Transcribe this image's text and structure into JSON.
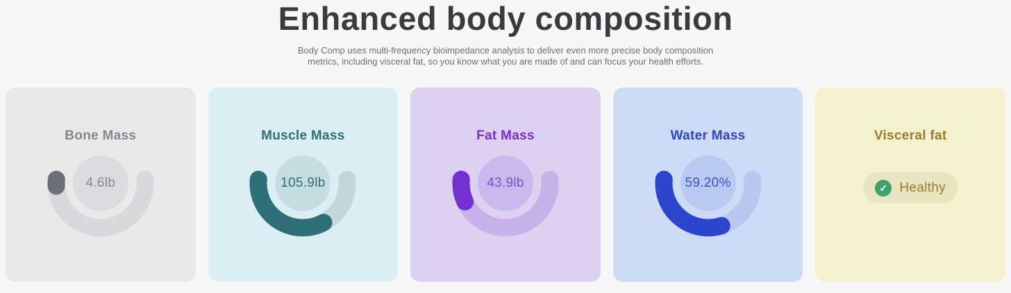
{
  "page": {
    "background": "#f7f7f8",
    "heading_color": "#3b3b3d",
    "subtitle_color": "#6c6e71"
  },
  "header": {
    "title": "Enhanced body composition",
    "subtitle": "Body Comp uses multi-frequency bioimpedance analysis to deliver even more precise body composition metrics, including visceral fat, so you know what you are made of and can focus your health efforts."
  },
  "cards": [
    {
      "id": "bone-mass",
      "title": "Bone Mass",
      "type": "gauge",
      "value": "4.6lb",
      "fraction": 0.045,
      "colors": {
        "bg": "#e9e9ea",
        "title": "#85888f",
        "track": "#d9d9db",
        "fill": "#6d7079",
        "circle": "#dcdcde",
        "value": "#85888f"
      }
    },
    {
      "id": "muscle-mass",
      "title": "Muscle Mass",
      "type": "gauge",
      "value": "105.9lb",
      "fraction": 0.647,
      "colors": {
        "bg": "#dbeff2",
        "title": "#2e7078",
        "track": "#c3d6d9",
        "fill": "#2e6f7a",
        "circle": "#c5dee1",
        "value": "#2e7078"
      }
    },
    {
      "id": "fat-mass",
      "title": "Fat Mass",
      "type": "gauge",
      "value": "43.9lb",
      "fraction": 0.155,
      "colors": {
        "bg": "#ddd1f2",
        "title": "#7a2cd6",
        "track": "#c6b2e9",
        "fill": "#7230d0",
        "circle": "#cab9ed",
        "value": "#7c4ec9"
      }
    },
    {
      "id": "water-mass",
      "title": "Water Mass",
      "type": "gauge",
      "value": "59.20%",
      "fraction": 0.592,
      "colors": {
        "bg": "#cedbf6",
        "title": "#2b46c8",
        "track": "#b9c8f0",
        "fill": "#2b46cc",
        "circle": "#bac9f1",
        "value": "#3b55c8"
      }
    },
    {
      "id": "visceral-fat",
      "title": "Visceral fat",
      "type": "badge",
      "badge": {
        "label": "Healthy",
        "icon": "check-circle-icon",
        "glyph": "✓",
        "icon_color": "#3da26c"
      },
      "colors": {
        "bg": "#f2f2ce",
        "title": "#9c7c2c",
        "pill_bg": "#e9e5c0",
        "value": "#9c7c2c"
      }
    }
  ]
}
